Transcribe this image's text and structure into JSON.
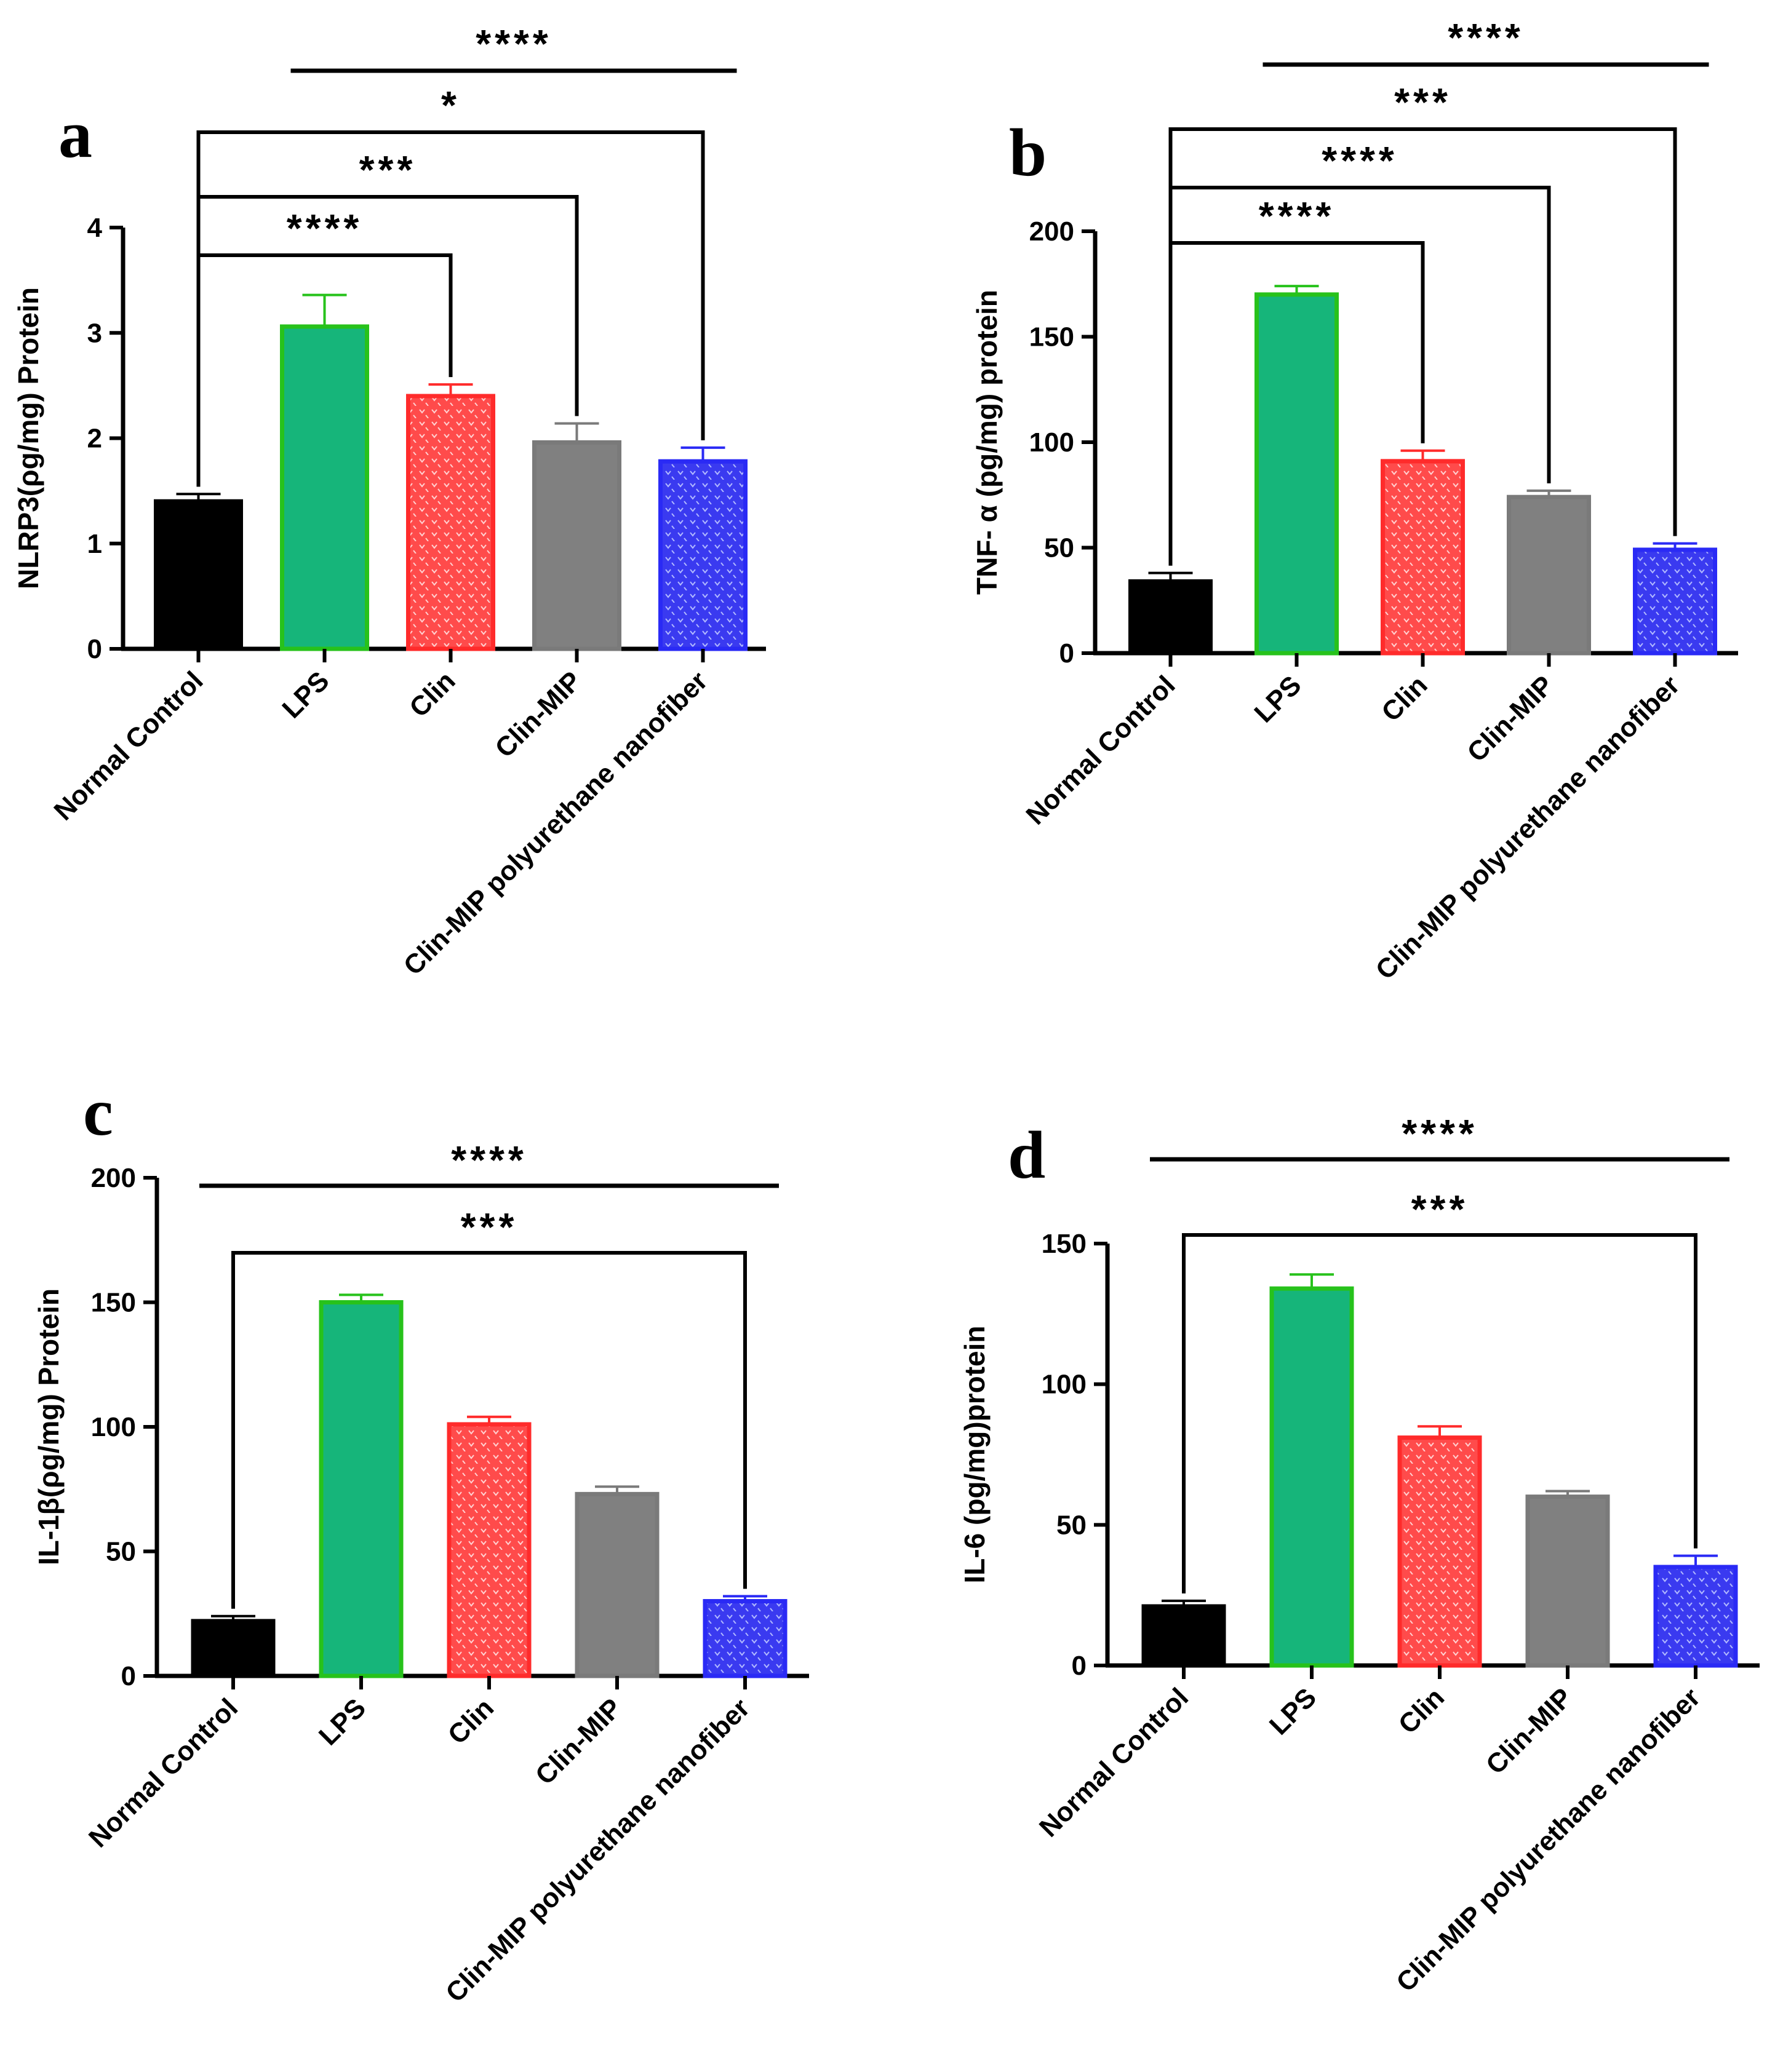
{
  "chart_data": [
    {
      "type": "bar",
      "panel": "a",
      "ylabel": "NLRP3(ρg/mg) Protein",
      "ylim": [
        0,
        4
      ],
      "yticks": [
        0,
        1,
        2,
        3,
        4
      ],
      "categories": [
        "Normal Control",
        "LPS",
        "Clin",
        "Clin-MIP",
        "Clin-MIP polyurethane nanofiber"
      ],
      "values": [
        1.4,
        3.06,
        2.4,
        1.96,
        1.78
      ],
      "errors": [
        0.07,
        0.3,
        0.11,
        0.18,
        0.13
      ],
      "colors": [
        "#000000",
        "#16b57a",
        "#ff4b4b",
        "#808080",
        "#3a3af0"
      ],
      "significance": [
        {
          "from": 1,
          "to": 4,
          "label": "****",
          "type": "line"
        },
        {
          "from": 0,
          "to": 4,
          "label": "*",
          "type": "bracket"
        },
        {
          "from": 0,
          "to": 3,
          "label": "***",
          "type": "bracket"
        },
        {
          "from": 0,
          "to": 2,
          "label": "****",
          "type": "bracket"
        }
      ]
    },
    {
      "type": "bar",
      "panel": "b",
      "ylabel": "TNF- α (pg/mg) protein",
      "ylim": [
        0,
        200
      ],
      "yticks": [
        0,
        50,
        100,
        150,
        200
      ],
      "categories": [
        "Normal Control",
        "LPS",
        "Clin",
        "Clin-MIP",
        "Clin-MIP polyurethane nanofiber"
      ],
      "values": [
        34,
        170,
        91,
        74,
        49
      ],
      "errors": [
        4,
        4,
        5,
        3,
        3
      ],
      "colors": [
        "#000000",
        "#16b57a",
        "#ff4b4b",
        "#808080",
        "#3a3af0"
      ],
      "significance": [
        {
          "from": 1,
          "to": 4,
          "label": "****",
          "type": "line"
        },
        {
          "from": 0,
          "to": 4,
          "label": "***",
          "type": "bracket"
        },
        {
          "from": 0,
          "to": 3,
          "label": "****",
          "type": "bracket"
        },
        {
          "from": 0,
          "to": 2,
          "label": "****",
          "type": "bracket"
        }
      ]
    },
    {
      "type": "bar",
      "panel": "c",
      "ylabel": "IL-1β(ρg/mg) Protein",
      "ylim": [
        0,
        200
      ],
      "yticks": [
        0,
        50,
        100,
        150,
        200
      ],
      "categories": [
        "Normal Control",
        "LPS",
        "Clin",
        "Clin-MIP",
        "Clin-MIP polyurethane nanofiber"
      ],
      "values": [
        22,
        150,
        101,
        73,
        30
      ],
      "errors": [
        2,
        3,
        3,
        3,
        2
      ],
      "colors": [
        "#000000",
        "#16b57a",
        "#ff4b4b",
        "#808080",
        "#3a3af0"
      ],
      "significance": [
        {
          "from": 0,
          "to": 4,
          "label": "****",
          "type": "line"
        },
        {
          "from": 0,
          "to": 4,
          "label": "***",
          "type": "bracket"
        }
      ]
    },
    {
      "type": "bar",
      "panel": "d",
      "ylabel": "IL-6 (pg/mg)protein",
      "ylim": [
        0,
        150
      ],
      "yticks": [
        0,
        50,
        100,
        150
      ],
      "categories": [
        "Normal Control",
        "LPS",
        "Clin",
        "Clin-MIP",
        "Clin-MIP polyurethane nanofiber"
      ],
      "values": [
        21,
        134,
        81,
        60,
        35
      ],
      "errors": [
        2,
        5,
        4,
        2,
        4
      ],
      "colors": [
        "#000000",
        "#16b57a",
        "#ff4b4b",
        "#808080",
        "#3a3af0"
      ],
      "significance": [
        {
          "from": 0,
          "to": 4,
          "label": "****",
          "type": "line"
        },
        {
          "from": 0,
          "to": 4,
          "label": "***",
          "type": "bracket"
        }
      ]
    }
  ]
}
